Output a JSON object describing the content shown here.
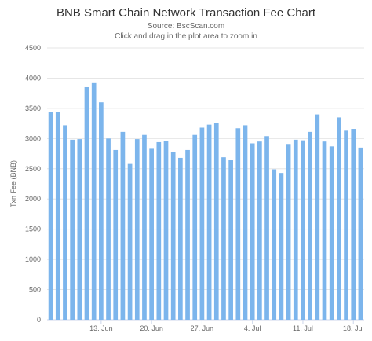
{
  "chart_data": {
    "type": "bar",
    "title": "BNB Smart Chain Network Transaction Fee Chart",
    "subtitle": [
      "Source: BscScan.com",
      "Click and drag in the plot area to zoom in"
    ],
    "ylabel": "Txn Fee (BNB)",
    "xlabel": "",
    "ylim": [
      0,
      4500
    ],
    "yticks": [
      0,
      500,
      1000,
      1500,
      2000,
      2500,
      3000,
      3500,
      4000,
      4500
    ],
    "xticks": [
      {
        "label": "13. Jun",
        "index": 7
      },
      {
        "label": "20. Jun",
        "index": 14
      },
      {
        "label": "27. Jun",
        "index": 21
      },
      {
        "label": "4. Jul",
        "index": 28
      },
      {
        "label": "11. Jul",
        "index": 35
      },
      {
        "label": "18. Jul",
        "index": 42
      }
    ],
    "values": [
      3440,
      3440,
      3220,
      2980,
      2990,
      3850,
      3930,
      3600,
      3000,
      2810,
      3110,
      2580,
      2990,
      3060,
      2830,
      2940,
      2960,
      2780,
      2680,
      2810,
      3060,
      3180,
      3230,
      3260,
      2690,
      2640,
      3170,
      3220,
      2920,
      2950,
      3040,
      2490,
      2430,
      2910,
      2980,
      2970,
      3110,
      3400,
      2950,
      2870,
      3350,
      3130,
      3160,
      2850
    ],
    "bar_color": "#7cb5ec",
    "grid": true,
    "legend": "none"
  }
}
